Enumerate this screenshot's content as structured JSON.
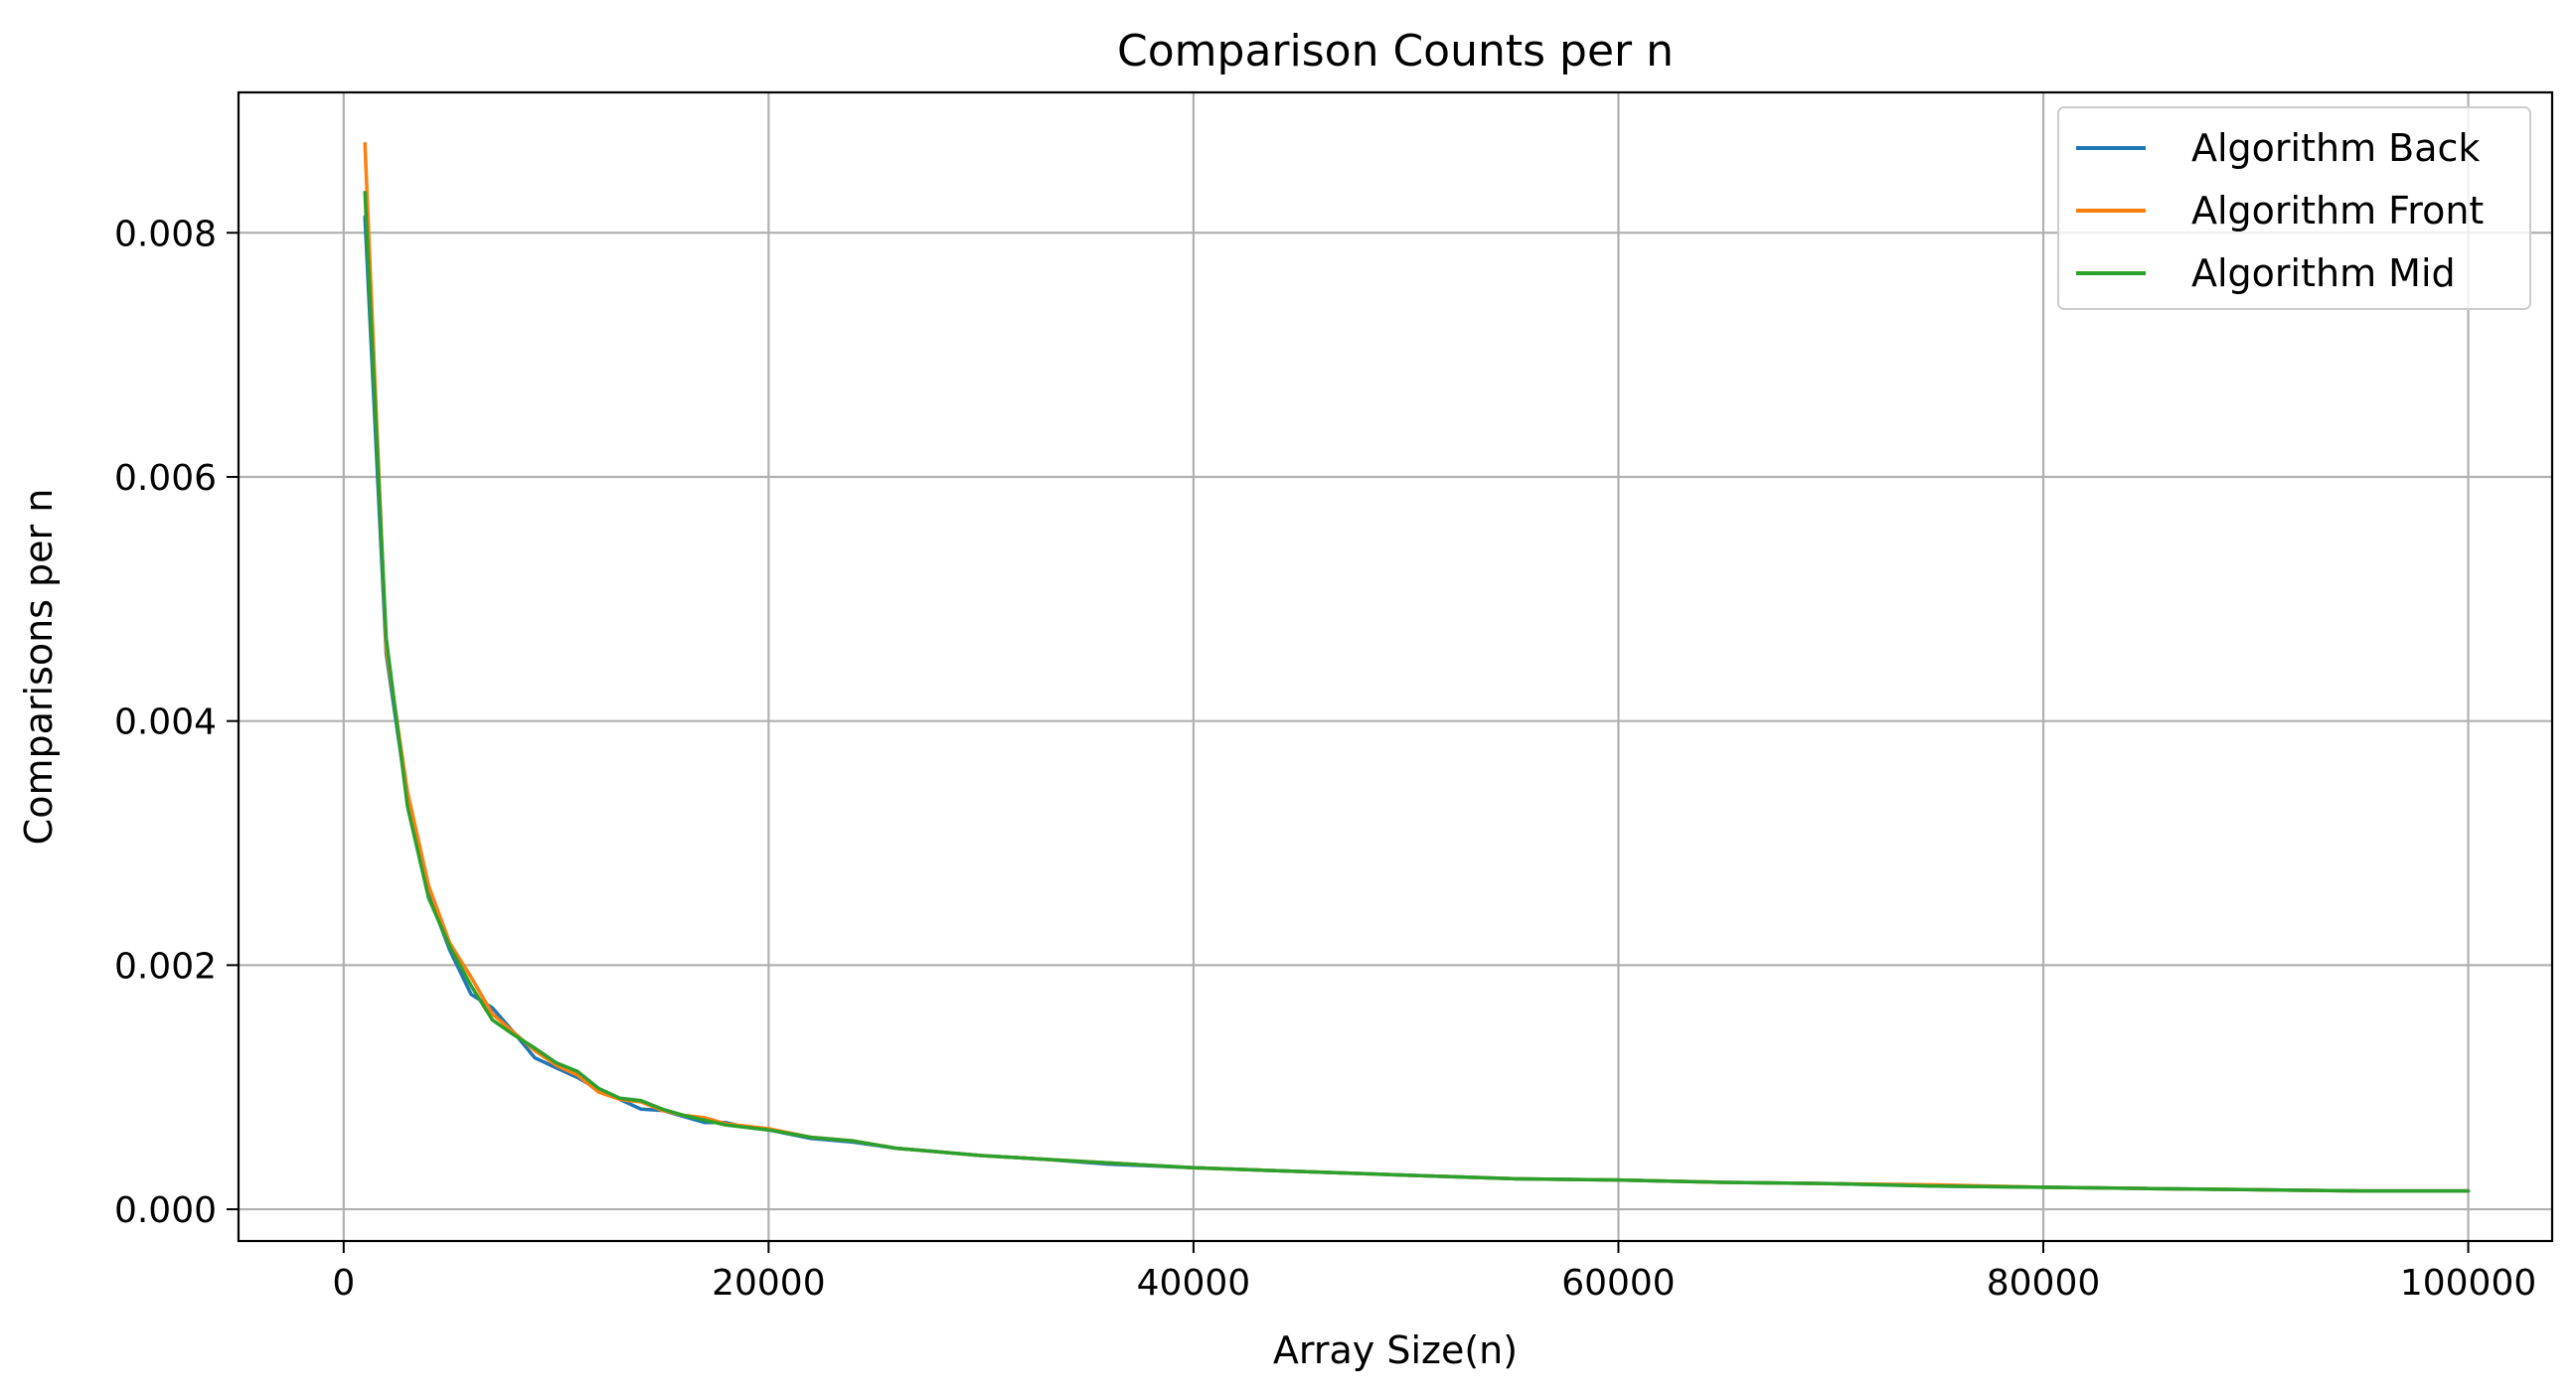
{
  "chart_data": {
    "type": "line",
    "title": "Comparison Counts per n",
    "xlabel": "Array Size(n)",
    "ylabel": "Comparisons per n",
    "xlim": [
      -4950,
      103950
    ],
    "ylim": [
      -0.00026,
      0.00915
    ],
    "xticks": [
      0,
      20000,
      40000,
      60000,
      80000,
      100000
    ],
    "xtick_labels": [
      "0",
      "20000",
      "40000",
      "60000",
      "80000",
      "100000"
    ],
    "yticks": [
      0.0,
      0.002,
      0.004,
      0.006,
      0.008
    ],
    "ytick_labels": [
      "0.000",
      "0.002",
      "0.004",
      "0.006",
      "0.008"
    ],
    "grid": true,
    "legend_position": "top-right",
    "x": [
      1000,
      2000,
      3000,
      4000,
      5000,
      6000,
      7000,
      8000,
      9000,
      10000,
      11000,
      12000,
      13000,
      14000,
      15000,
      16000,
      17000,
      18000,
      19000,
      20000,
      22000,
      24000,
      26000,
      28000,
      30000,
      33000,
      36000,
      40000,
      45000,
      50000,
      55000,
      60000,
      65000,
      70000,
      75000,
      80000,
      85000,
      90000,
      95000,
      100000
    ],
    "series": [
      {
        "name": "Algorithm Back",
        "color": "#1f77b4",
        "values": [
          0.00813,
          0.00455,
          0.00335,
          0.00258,
          0.00212,
          0.00176,
          0.00165,
          0.00145,
          0.00124,
          0.00116,
          0.00108,
          0.00098,
          0.0009,
          0.00082,
          0.00081,
          0.00076,
          0.00071,
          0.00071,
          0.00067,
          0.00065,
          0.00058,
          0.00055,
          0.0005,
          0.00047,
          0.00044,
          0.00041,
          0.00037,
          0.00034,
          0.00031,
          0.00028,
          0.00025,
          0.00024,
          0.00022,
          0.00021,
          0.00019,
          0.00018,
          0.00017,
          0.00016,
          0.00015,
          0.00015
        ]
      },
      {
        "name": "Algorithm Front",
        "color": "#ff7f0e",
        "values": [
          0.00873,
          0.0046,
          0.00342,
          0.00265,
          0.00218,
          0.0019,
          0.0016,
          0.00145,
          0.0013,
          0.00118,
          0.0011,
          0.00096,
          0.0009,
          0.00088,
          0.00081,
          0.00077,
          0.00075,
          0.0007,
          0.00068,
          0.00066,
          0.00059,
          0.00056,
          0.0005,
          0.00047,
          0.00044,
          0.00041,
          0.00038,
          0.00034,
          0.00031,
          0.00028,
          0.00025,
          0.00024,
          0.00022,
          0.00021,
          0.0002,
          0.00018,
          0.00017,
          0.00016,
          0.00015,
          0.00015
        ]
      },
      {
        "name": "Algorithm Mid",
        "color": "#2ca02c",
        "values": [
          0.00833,
          0.00468,
          0.0033,
          0.00255,
          0.00215,
          0.00183,
          0.00155,
          0.00143,
          0.00132,
          0.0012,
          0.00113,
          0.00099,
          0.00091,
          0.00089,
          0.00082,
          0.00077,
          0.00073,
          0.00069,
          0.00067,
          0.00065,
          0.00059,
          0.00056,
          0.0005,
          0.00047,
          0.00044,
          0.00041,
          0.00038,
          0.00034,
          0.00031,
          0.00028,
          0.00025,
          0.00024,
          0.00022,
          0.00021,
          0.00019,
          0.00018,
          0.00017,
          0.00016,
          0.00015,
          0.00015
        ]
      }
    ]
  }
}
